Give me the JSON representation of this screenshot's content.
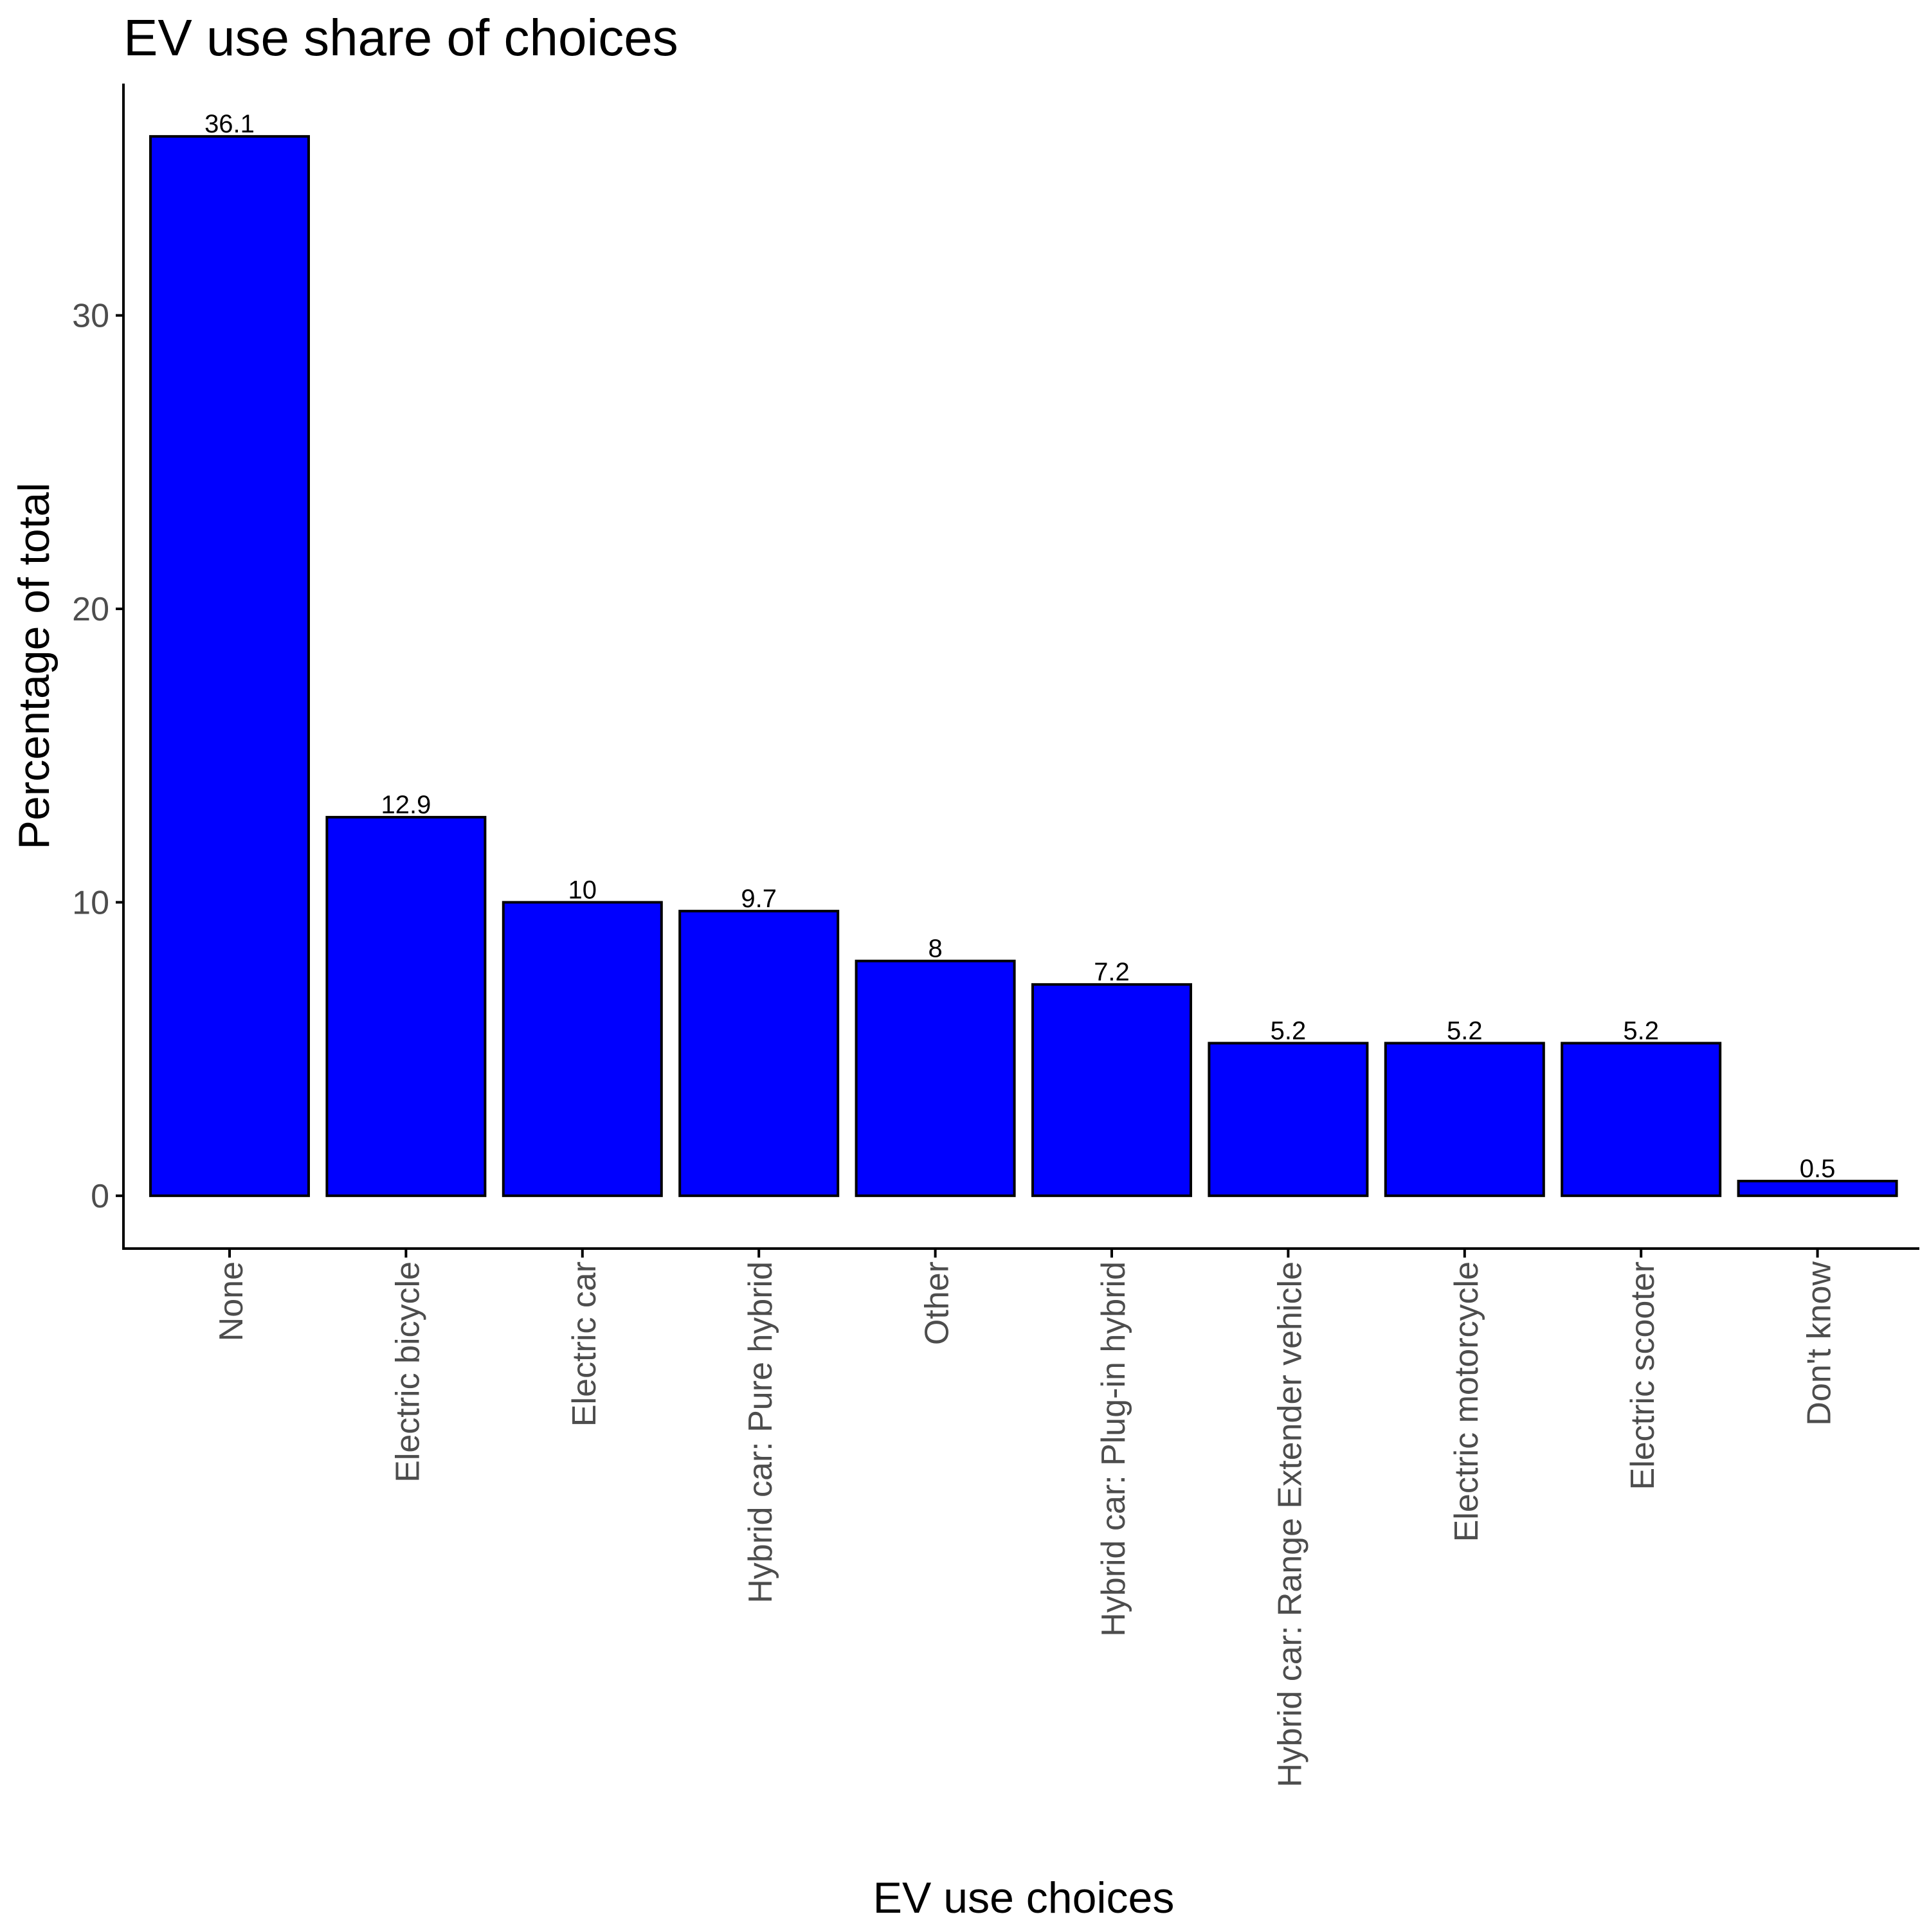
{
  "chart_data": {
    "type": "bar",
    "title": "EV use share of choices",
    "xlabel": "EV use choices",
    "ylabel": "Percentage of total",
    "categories": [
      "None",
      "Electric bicycle",
      "Electric car",
      "Hybrid car: Pure hybrid",
      "Other",
      "Hybrid car: Plug-in hybrid",
      "Hybrid car: Range Extender vehicle",
      "Electric motorcycle",
      "Electric scooter",
      "Don't know"
    ],
    "values": [
      36.1,
      12.9,
      10,
      9.7,
      8,
      7.2,
      5.2,
      5.2,
      5.2,
      0.5
    ],
    "data_labels": [
      "36.1",
      "12.9",
      "10",
      "9.7",
      "8",
      "7.2",
      "5.2",
      "5.2",
      "5.2",
      "0.5"
    ],
    "yticks": [
      0,
      10,
      20,
      30
    ],
    "ylim": [
      -1.8,
      37.9
    ],
    "bar_color": "#0000ff",
    "bar_outline": "#000000",
    "grid": false,
    "legend": "none"
  }
}
